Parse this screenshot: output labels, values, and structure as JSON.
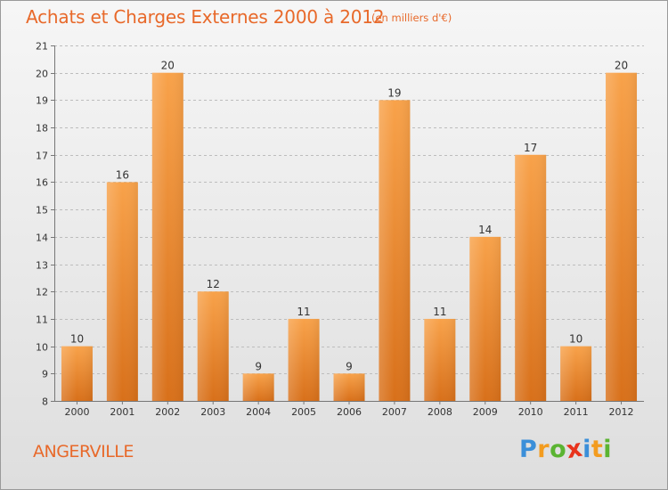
{
  "chart_data": {
    "type": "bar",
    "title": "Achats et Charges Externes 2000 à 2012",
    "unit_note": "(en milliers d'€)",
    "categories": [
      "2000",
      "2001",
      "2002",
      "2003",
      "2004",
      "2005",
      "2006",
      "2007",
      "2008",
      "2009",
      "2010",
      "2011",
      "2012"
    ],
    "values": [
      10,
      16,
      20,
      12,
      9,
      11,
      9,
      19,
      11,
      14,
      17,
      10,
      20
    ],
    "ylim": [
      8,
      21
    ],
    "yticks": [
      8,
      9,
      10,
      11,
      12,
      13,
      14,
      15,
      16,
      17,
      18,
      19,
      20,
      21
    ],
    "grid": "horizontal-dashed",
    "bar_color": "#f0892f",
    "bar_color_top": "#f8a24a",
    "bar_color_bottom": "#d8701a",
    "text_color": "#e8692a"
  },
  "footer": {
    "place": "ANGERVILLE",
    "brand": {
      "letters": [
        "P",
        "r",
        "o",
        "x",
        "i",
        "t",
        "i"
      ],
      "colors": [
        "#3b8fd9",
        "#f39c1f",
        "#5bb432",
        "#e8331c",
        "#3b8fd9",
        "#f39c1f",
        "#5bb432"
      ]
    }
  }
}
